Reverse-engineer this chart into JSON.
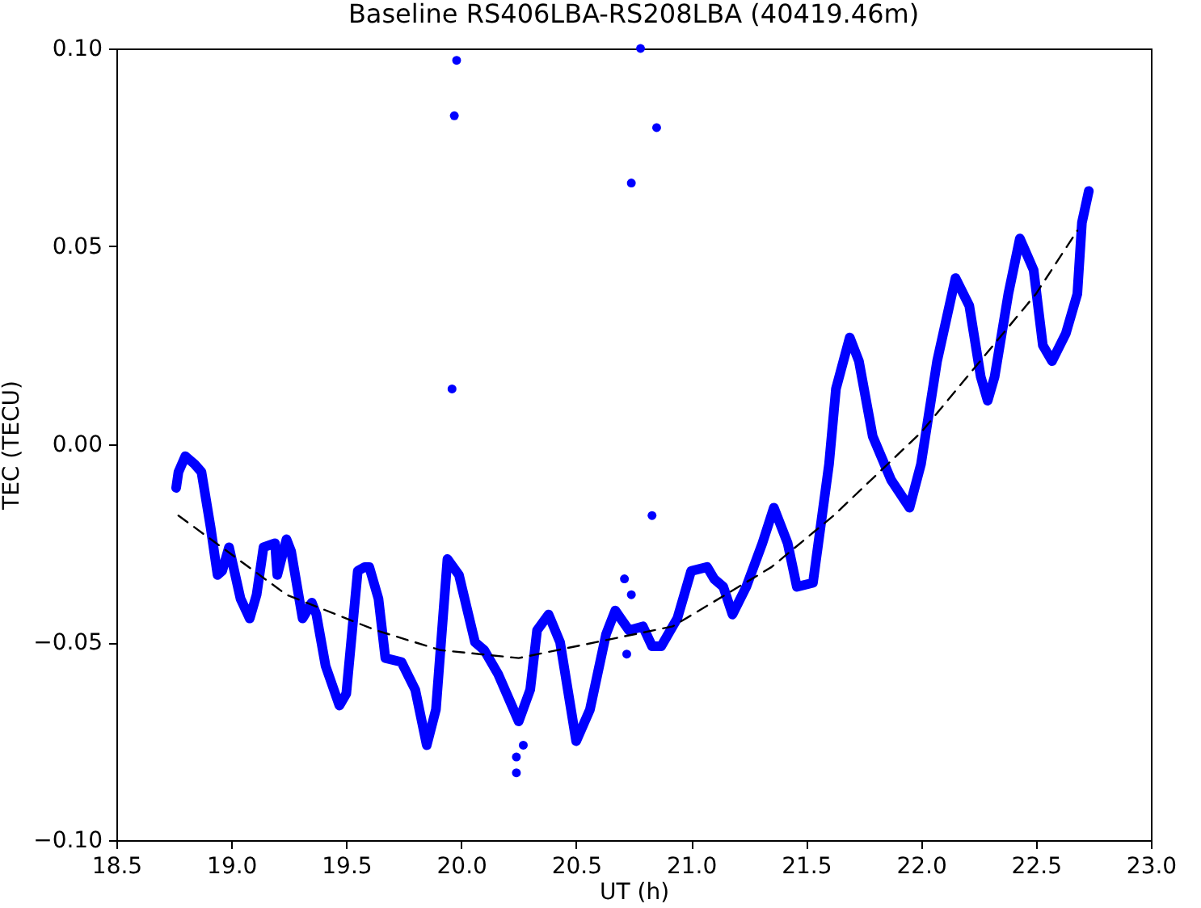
{
  "chart_data": {
    "type": "line",
    "title": "Baseline RS406LBA-RS208LBA (40419.46m)",
    "xlabel": "UT (h)",
    "ylabel": "TEC (TECU)",
    "xlim": [
      18.5,
      23.0
    ],
    "ylim": [
      -0.1,
      0.1
    ],
    "xticks": [
      {
        "value": 18.5,
        "label": "18.5"
      },
      {
        "value": 19,
        "label": "19.0"
      },
      {
        "value": 19.5,
        "label": "19.5"
      },
      {
        "value": 20,
        "label": "20.0"
      },
      {
        "value": 20.5,
        "label": "20.5"
      },
      {
        "value": 21,
        "label": "21.0"
      },
      {
        "value": 21.5,
        "label": "21.5"
      },
      {
        "value": 22,
        "label": "22.0"
      },
      {
        "value": 22.5,
        "label": "22.5"
      },
      {
        "value": 23,
        "label": "23.0"
      }
    ],
    "yticks": [
      {
        "value": -0.1,
        "label": "−0.10"
      },
      {
        "value": -0.05,
        "label": "−0.05"
      },
      {
        "value": 0,
        "label": "0.00"
      },
      {
        "value": 0.05,
        "label": "0.05"
      },
      {
        "value": 0.1,
        "label": "0.10"
      }
    ],
    "grid": false,
    "series": [
      {
        "color": "#0000ff",
        "line_style": "solid",
        "x": [
          18.76,
          18.77,
          18.8,
          18.84,
          18.87,
          18.91,
          18.94,
          18.96,
          18.99,
          19.04,
          19.08,
          19.11,
          19.14,
          19.19,
          19.2,
          19.24,
          19.26,
          19.31,
          19.35,
          19.37,
          19.41,
          19.47,
          19.5,
          19.55,
          19.58,
          19.6,
          19.64,
          19.67,
          19.74,
          19.8,
          19.85,
          19.89,
          19.94,
          19.99,
          20.06,
          20.1,
          20.16,
          20.25,
          20.3,
          20.33,
          20.38,
          20.43,
          20.5,
          20.56,
          20.63,
          20.67,
          20.73,
          20.79,
          20.83,
          20.87,
          20.94,
          21.0,
          21.07,
          21.1,
          21.14,
          21.18,
          21.24,
          21.31,
          21.36,
          21.42,
          21.46,
          21.53,
          21.6,
          21.63,
          21.69,
          21.73,
          21.79,
          21.87,
          21.95,
          22.0,
          22.07,
          22.15,
          22.21,
          22.26,
          22.29,
          22.32,
          22.38,
          22.43,
          22.49,
          22.53,
          22.57,
          22.63,
          22.68,
          22.7,
          22.73
        ],
        "values": [
          -0.011,
          -0.007,
          -0.003,
          -0.005,
          -0.007,
          -0.021,
          -0.033,
          -0.032,
          -0.026,
          -0.039,
          -0.044,
          -0.038,
          -0.026,
          -0.025,
          -0.033,
          -0.024,
          -0.027,
          -0.044,
          -0.04,
          -0.043,
          -0.056,
          -0.066,
          -0.063,
          -0.032,
          -0.031,
          -0.031,
          -0.039,
          -0.054,
          -0.055,
          -0.062,
          -0.076,
          -0.067,
          -0.029,
          -0.033,
          -0.05,
          -0.052,
          -0.058,
          -0.07,
          -0.062,
          -0.047,
          -0.043,
          -0.05,
          -0.075,
          -0.067,
          -0.048,
          -0.042,
          -0.047,
          -0.046,
          -0.051,
          -0.051,
          -0.044,
          -0.032,
          -0.031,
          -0.034,
          -0.036,
          -0.043,
          -0.036,
          -0.025,
          -0.016,
          -0.025,
          -0.036,
          -0.035,
          -0.005,
          0.014,
          0.027,
          0.021,
          0.002,
          -0.009,
          -0.016,
          -0.005,
          0.021,
          0.042,
          0.035,
          0.017,
          0.011,
          0.017,
          0.038,
          0.052,
          0.044,
          0.025,
          0.021,
          0.028,
          0.038,
          0.056,
          0.064
        ]
      },
      {
        "type": "scatter",
        "color": "#0000ff",
        "marker": "circle",
        "x": [
          19.98,
          19.97,
          19.96,
          20.78,
          20.85,
          20.74,
          20.83,
          20.71,
          20.74,
          20.72,
          20.27,
          20.24,
          20.24
        ],
        "values": [
          0.097,
          0.083,
          0.014,
          0.1,
          0.08,
          0.066,
          -0.018,
          -0.034,
          -0.038,
          -0.053,
          -0.076,
          -0.079,
          -0.083
        ]
      },
      {
        "type": "line",
        "color": "#000000",
        "line_style": "dashed",
        "x": [
          18.77,
          19.24,
          19.63,
          19.91,
          20.25,
          20.92,
          21.35,
          21.62,
          22.0,
          22.5,
          22.68
        ],
        "values": [
          -0.018,
          -0.038,
          -0.047,
          -0.052,
          -0.054,
          -0.046,
          -0.031,
          -0.018,
          0.003,
          0.038,
          0.054
        ]
      }
    ]
  }
}
